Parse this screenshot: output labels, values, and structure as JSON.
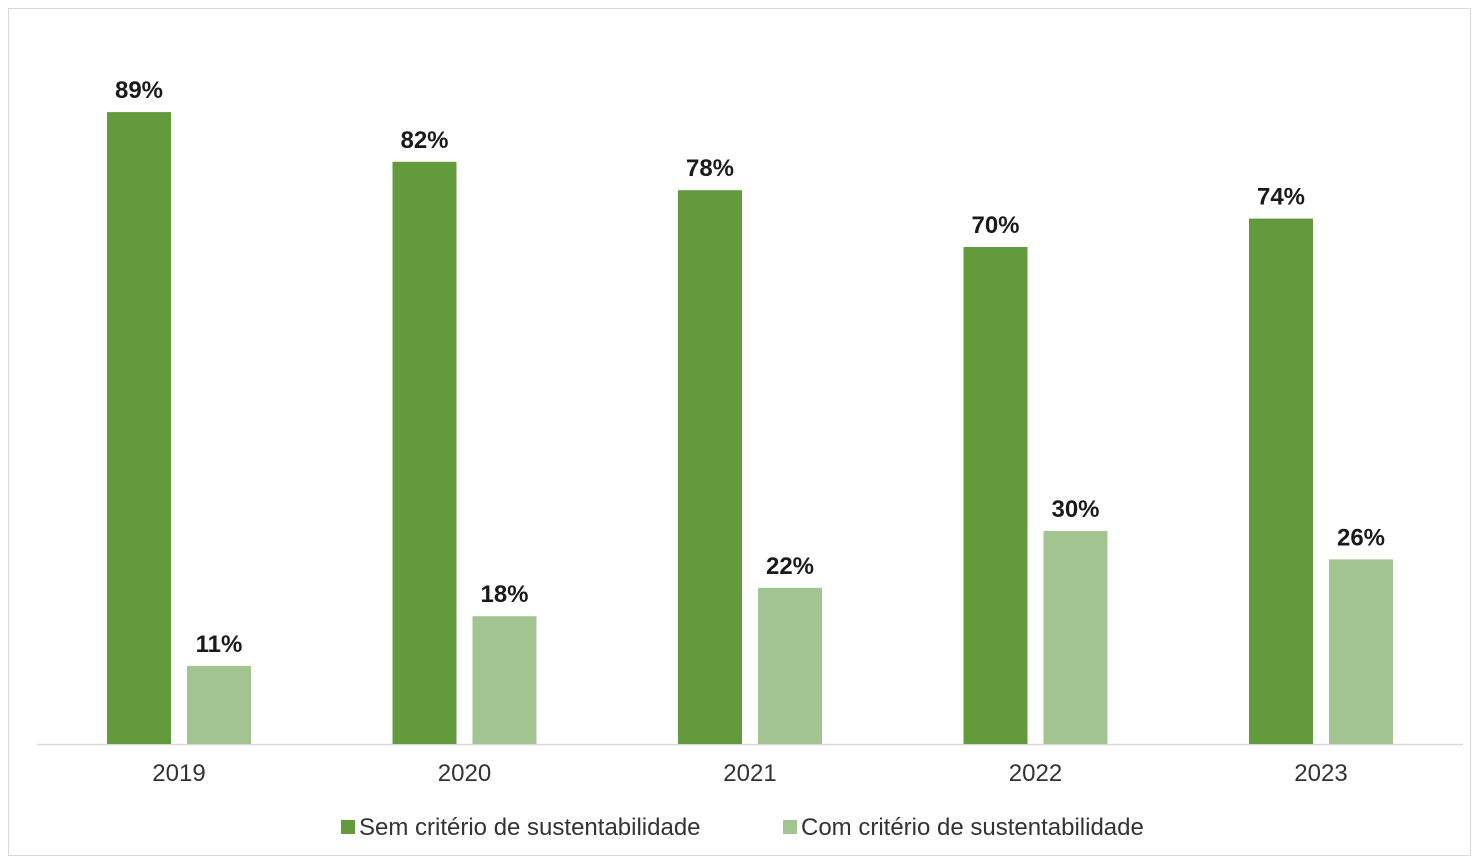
{
  "chart_data": {
    "type": "bar",
    "categories": [
      "2019",
      "2020",
      "2021",
      "2022",
      "2023"
    ],
    "series": [
      {
        "name": "Sem critério de sustentabilidade",
        "values": [
          89,
          82,
          78,
          70,
          74
        ],
        "labels": [
          "89%",
          "82%",
          "78%",
          "70%",
          "74%"
        ],
        "color": "#639a3c"
      },
      {
        "name": "Com critério de sustentabilidade",
        "values": [
          11,
          18,
          22,
          30,
          26
        ],
        "labels": [
          "11%",
          "18%",
          "22%",
          "30%",
          "26%"
        ],
        "color": "#a2c490"
      }
    ],
    "ylim": [
      0,
      100
    ],
    "grid": false,
    "legend": "bottom",
    "axis_color": "#d9d9d9"
  }
}
